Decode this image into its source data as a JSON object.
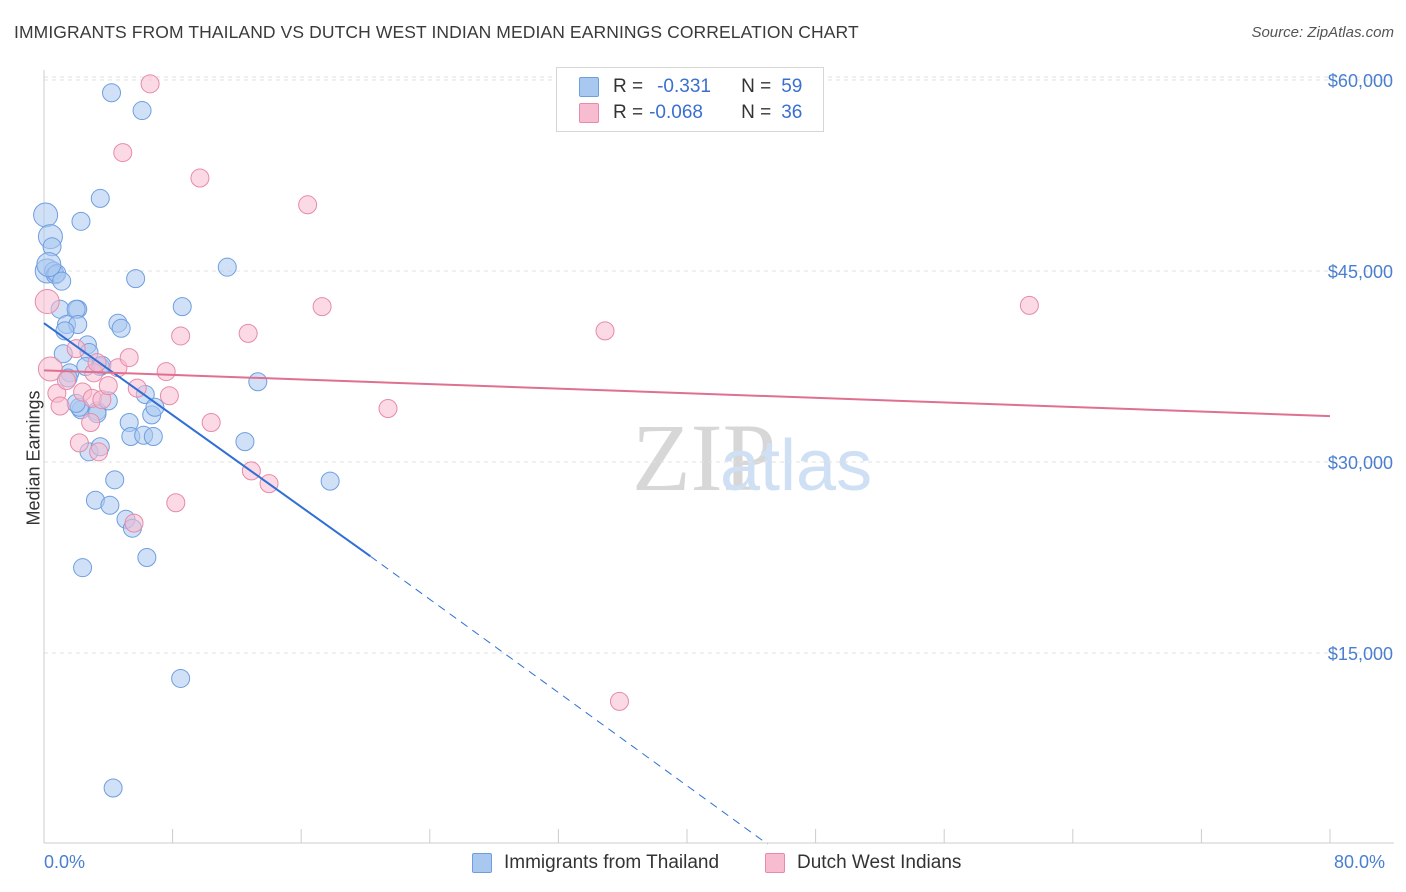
{
  "header": {
    "title": "IMMIGRANTS FROM THAILAND VS DUTCH WEST INDIAN MEDIAN EARNINGS CORRELATION CHART",
    "source": "Source: ZipAtlas.com"
  },
  "watermark": {
    "zip": "ZIP",
    "atlas": "atlas"
  },
  "legend": {
    "rows": [
      {
        "r_label": "R =",
        "r_value": "-0.331",
        "n_label": "N =",
        "n_value": "59",
        "color": "#a9c8f0",
        "border": "#6f9ee0"
      },
      {
        "r_label": "R =",
        "r_value": "-0.068",
        "n_label": "N =",
        "n_value": "36",
        "color": "#f8bcd0",
        "border": "#e88aa8"
      }
    ]
  },
  "bottom_legend": [
    {
      "label": "Immigrants from Thailand",
      "color": "#a9c8f0",
      "border": "#6f9ee0"
    },
    {
      "label": "Dutch West Indians",
      "color": "#f8bcd0",
      "border": "#e88aa8"
    }
  ],
  "chart_data": {
    "type": "scatter",
    "title": "IMMIGRANTS FROM THAILAND VS DUTCH WEST INDIAN MEDIAN EARNINGS CORRELATION CHART",
    "xlabel": "",
    "ylabel": "Median Earnings",
    "xlim": [
      0,
      80
    ],
    "ylim": [
      0,
      61000
    ],
    "x_tick_labels": [
      "0.0%",
      "80.0%"
    ],
    "y_ticks": [
      {
        "value": 15000,
        "label": "$15,000"
      },
      {
        "value": 30000,
        "label": "$30,000"
      },
      {
        "value": 45000,
        "label": "$45,000"
      },
      {
        "value": 60000,
        "label": "$60,000"
      }
    ],
    "grid": true,
    "series": [
      {
        "name": "Immigrants from Thailand",
        "color": "#a9c8f0",
        "stroke": "#6f9ee0",
        "R": -0.331,
        "N": 59,
        "trend": {
          "x0": 0,
          "y0": 40900,
          "x1": 20.3,
          "y1": 22600,
          "dash_x1": 45,
          "dash_y1": 0
        },
        "points": [
          [
            0.1,
            49400
          ],
          [
            0.2,
            45000
          ],
          [
            0.4,
            47700
          ],
          [
            0.5,
            46900
          ],
          [
            0.6,
            45000
          ],
          [
            0.7,
            44700
          ],
          [
            0.8,
            44800
          ],
          [
            1.1,
            44200
          ],
          [
            1.0,
            42000
          ],
          [
            1.4,
            40800
          ],
          [
            1.2,
            38500
          ],
          [
            1.6,
            37000
          ],
          [
            1.5,
            36600
          ],
          [
            2.1,
            42000
          ],
          [
            2.0,
            42000
          ],
          [
            2.1,
            40800
          ],
          [
            2.3,
            34100
          ],
          [
            2.2,
            34300
          ],
          [
            2.7,
            39200
          ],
          [
            2.8,
            38600
          ],
          [
            2.6,
            37500
          ],
          [
            2.8,
            30800
          ],
          [
            3.3,
            34000
          ],
          [
            3.3,
            33800
          ],
          [
            3.2,
            27000
          ],
          [
            3.5,
            31200
          ],
          [
            3.5,
            37500
          ],
          [
            3.6,
            37600
          ],
          [
            4.0,
            34800
          ],
          [
            4.1,
            26600
          ],
          [
            4.2,
            59000
          ],
          [
            4.4,
            28600
          ],
          [
            4.6,
            40900
          ],
          [
            4.8,
            40500
          ],
          [
            5.1,
            25500
          ],
          [
            5.3,
            33100
          ],
          [
            5.4,
            32000
          ],
          [
            5.5,
            24800
          ],
          [
            5.7,
            44400
          ],
          [
            6.1,
            57600
          ],
          [
            6.2,
            32100
          ],
          [
            6.3,
            35300
          ],
          [
            6.4,
            22500
          ],
          [
            6.7,
            33700
          ],
          [
            6.8,
            32000
          ],
          [
            6.9,
            34300
          ],
          [
            8.5,
            13000
          ],
          [
            8.6,
            42200
          ],
          [
            11.4,
            45300
          ],
          [
            12.5,
            31600
          ],
          [
            13.3,
            36300
          ],
          [
            17.8,
            28500
          ],
          [
            2.4,
            21700
          ],
          [
            3.5,
            50700
          ],
          [
            4.3,
            4400
          ],
          [
            0.3,
            45500
          ],
          [
            2.0,
            34600
          ],
          [
            1.3,
            40300
          ],
          [
            2.3,
            48900
          ]
        ]
      },
      {
        "name": "Dutch West Indians",
        "color": "#f8bcd0",
        "stroke": "#e88aa8",
        "R": -0.068,
        "N": 36,
        "trend": {
          "x0": 0,
          "y0": 37200,
          "x1": 80,
          "y1": 33600
        },
        "points": [
          [
            0.2,
            42600
          ],
          [
            0.4,
            37300
          ],
          [
            0.8,
            35400
          ],
          [
            1.0,
            34400
          ],
          [
            1.4,
            36400
          ],
          [
            2.0,
            38900
          ],
          [
            2.2,
            31500
          ],
          [
            2.4,
            35500
          ],
          [
            2.9,
            33100
          ],
          [
            3.0,
            35000
          ],
          [
            3.1,
            37000
          ],
          [
            3.4,
            30800
          ],
          [
            3.6,
            34900
          ],
          [
            4.0,
            36000
          ],
          [
            4.6,
            37400
          ],
          [
            4.9,
            54300
          ],
          [
            5.3,
            38200
          ],
          [
            5.6,
            25200
          ],
          [
            5.8,
            35800
          ],
          [
            6.6,
            59700
          ],
          [
            7.6,
            37100
          ],
          [
            7.8,
            35200
          ],
          [
            8.2,
            26800
          ],
          [
            8.5,
            39900
          ],
          [
            9.7,
            52300
          ],
          [
            10.4,
            33100
          ],
          [
            12.7,
            40100
          ],
          [
            12.9,
            29300
          ],
          [
            14.0,
            28300
          ],
          [
            16.4,
            50200
          ],
          [
            17.3,
            42200
          ],
          [
            21.4,
            34200
          ],
          [
            34.9,
            40300
          ],
          [
            35.8,
            11200
          ],
          [
            61.3,
            42300
          ],
          [
            3.3,
            37800
          ]
        ]
      }
    ]
  }
}
